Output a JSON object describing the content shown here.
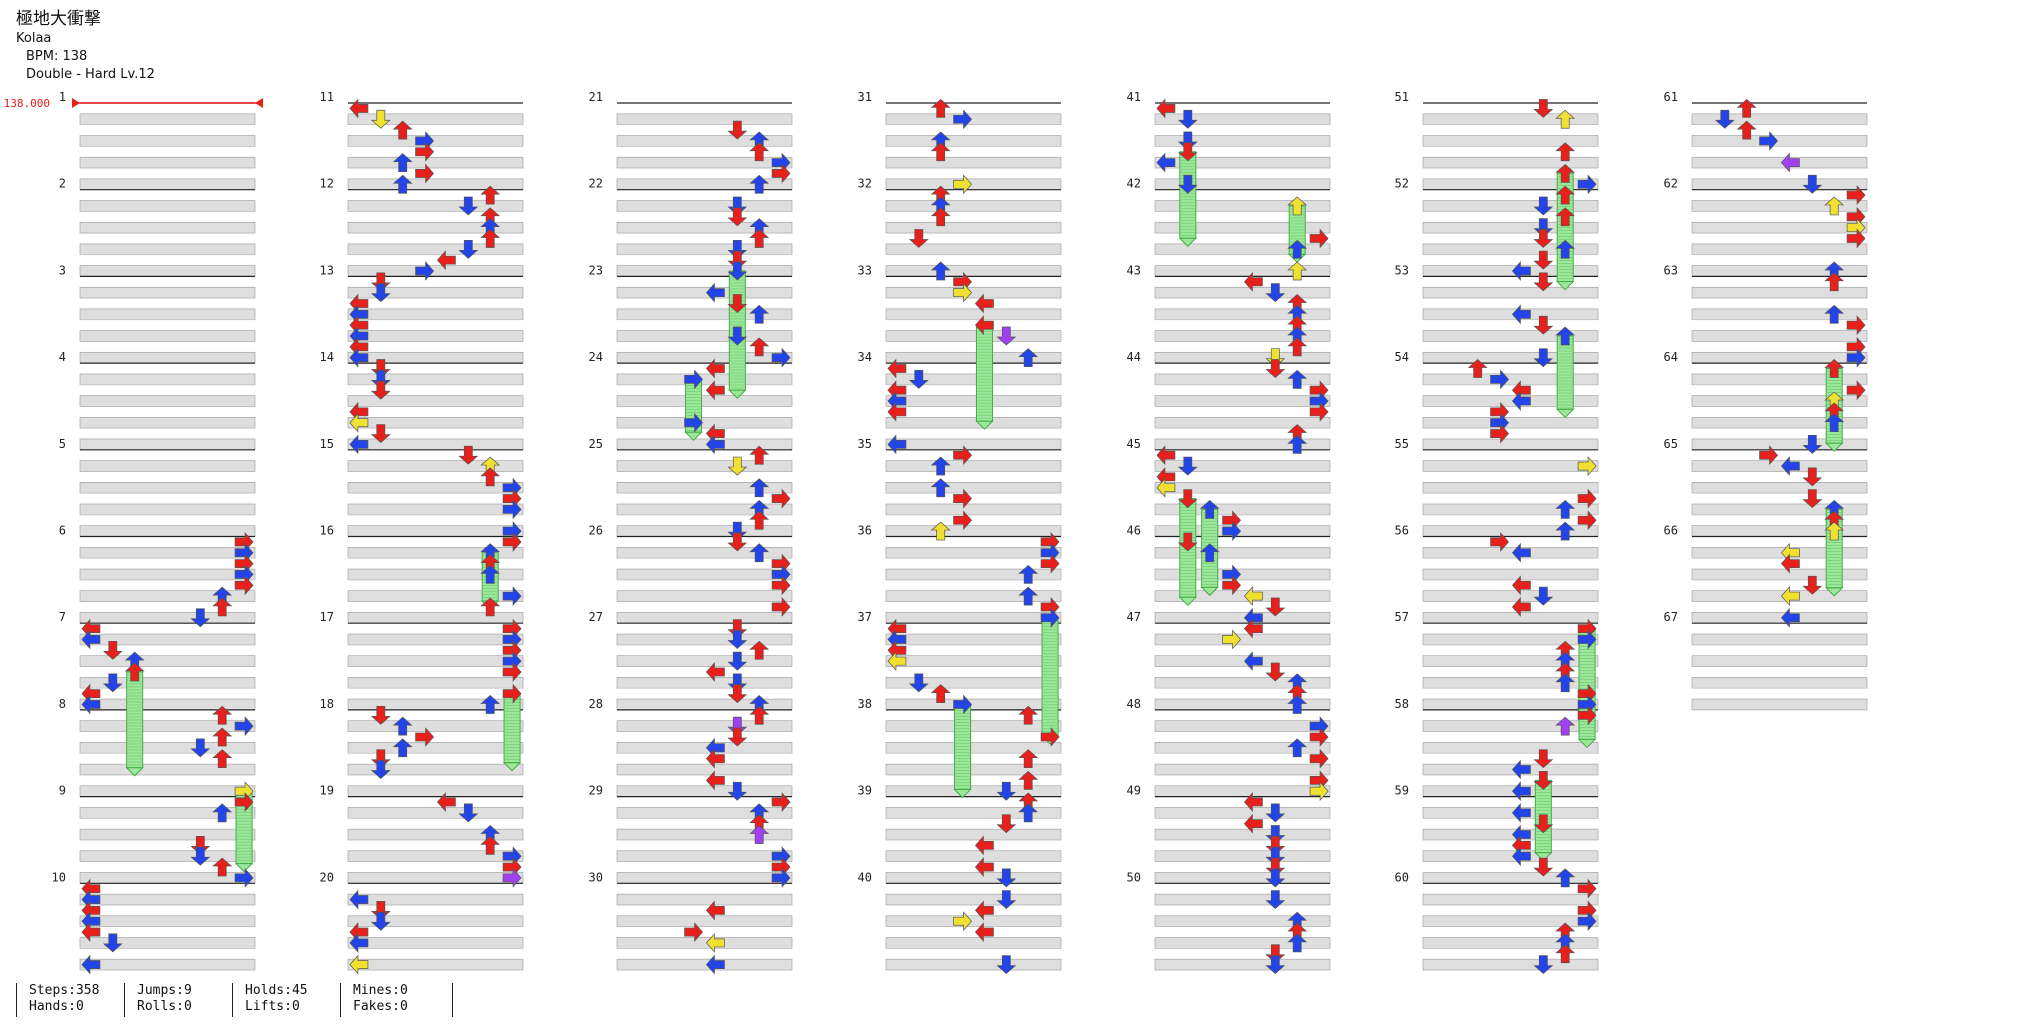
{
  "song": {
    "title": "極地大衝撃",
    "artist": "Kolaa",
    "bpm_text": "BPM: 138",
    "difficulty_text": "Double - Hard Lv.12"
  },
  "bpm_marker": "138.000",
  "measure_labels": [
    "1",
    "2",
    "3",
    "4",
    "5",
    "6",
    "7",
    "8",
    "9",
    "10",
    "11",
    "12",
    "13",
    "14",
    "15",
    "16",
    "17",
    "18",
    "19",
    "20",
    "21",
    "22",
    "23",
    "24",
    "25",
    "26",
    "27",
    "28",
    "29",
    "30",
    "31",
    "32",
    "33",
    "34",
    "35",
    "36",
    "37",
    "38",
    "39",
    "40",
    "41",
    "42",
    "43",
    "44",
    "45",
    "46",
    "47",
    "48",
    "49",
    "50",
    "51",
    "52",
    "53",
    "54",
    "55",
    "56",
    "57",
    "58",
    "59",
    "60",
    "61",
    "62",
    "63",
    "64",
    "65",
    "66",
    "67"
  ],
  "colors": {
    "quarter": "#e8201c",
    "eighth": "#2244e8",
    "sixteenth": "#f0e030",
    "twelfth": "#a040f0",
    "hold": "#9be89b",
    "hold_border": "#44aa44",
    "band": "#dedede"
  },
  "stats": {
    "steps": "Steps:358",
    "hands": "Hands:0",
    "jumps": "Jumps:9",
    "rolls": "Rolls:0",
    "holds": "Holds:45",
    "lifts": "Lifts:0",
    "mines": "Mines:0",
    "fakes": "Fakes:0"
  }
}
